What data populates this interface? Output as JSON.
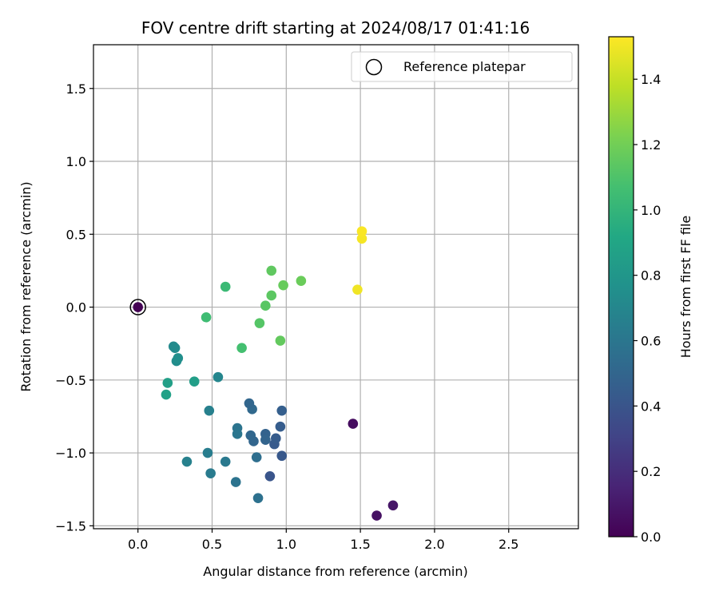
{
  "chart_data": {
    "type": "scatter",
    "title": "FOV centre drift starting at 2024/08/17 01:41:16",
    "xlabel": "Angular distance from reference (arcmin)",
    "ylabel": "Rotation from reference (arcmin)",
    "xlim": [
      -0.3,
      2.97
    ],
    "ylim": [
      -1.52,
      1.8
    ],
    "xticks": [
      0.0,
      0.5,
      1.0,
      1.5,
      2.0,
      2.5
    ],
    "xtick_labels": [
      "0.0",
      "0.5",
      "1.0",
      "1.5",
      "2.0",
      "2.5"
    ],
    "yticks": [
      -1.5,
      -1.0,
      -0.5,
      0.0,
      0.5,
      1.0,
      1.5
    ],
    "ytick_labels": [
      "−1.5",
      "−1.0",
      "−0.5",
      "0.0",
      "0.5",
      "1.0",
      "1.5"
    ],
    "grid": true,
    "legend": {
      "placement": "top-right",
      "entries": [
        {
          "label": "Reference platepar",
          "marker": "open-circle"
        }
      ]
    },
    "reference_point": {
      "x": 0.0,
      "y": 0.0
    },
    "colorbar": {
      "label": "Hours from first FF file",
      "colormap": "viridis",
      "range": [
        0.0,
        1.53
      ],
      "ticks": [
        0.0,
        0.2,
        0.4,
        0.6,
        0.8,
        1.0,
        1.2,
        1.4
      ],
      "tick_labels": [
        "0.0",
        "0.2",
        "0.4",
        "0.6",
        "0.8",
        "1.0",
        "1.2",
        "1.4"
      ]
    },
    "points": [
      {
        "x": 0.0,
        "y": 0.0,
        "c": 0.0
      },
      {
        "x": 1.45,
        "y": -0.8,
        "c": 0.05
      },
      {
        "x": 1.61,
        "y": -1.43,
        "c": 0.07
      },
      {
        "x": 1.72,
        "y": -1.36,
        "c": 0.09
      },
      {
        "x": 0.89,
        "y": -1.16,
        "c": 0.4
      },
      {
        "x": 0.97,
        "y": -1.02,
        "c": 0.42
      },
      {
        "x": 0.92,
        "y": -0.94,
        "c": 0.43
      },
      {
        "x": 0.93,
        "y": -0.9,
        "c": 0.44
      },
      {
        "x": 0.96,
        "y": -0.82,
        "c": 0.45
      },
      {
        "x": 0.97,
        "y": -0.71,
        "c": 0.46
      },
      {
        "x": 0.86,
        "y": -0.87,
        "c": 0.48
      },
      {
        "x": 0.86,
        "y": -0.91,
        "c": 0.49
      },
      {
        "x": 0.78,
        "y": -0.92,
        "c": 0.5
      },
      {
        "x": 0.76,
        "y": -0.88,
        "c": 0.51
      },
      {
        "x": 0.77,
        "y": -0.7,
        "c": 0.52
      },
      {
        "x": 0.75,
        "y": -0.66,
        "c": 0.5
      },
      {
        "x": 0.8,
        "y": -1.03,
        "c": 0.55
      },
      {
        "x": 0.81,
        "y": -1.31,
        "c": 0.57
      },
      {
        "x": 0.66,
        "y": -1.2,
        "c": 0.58
      },
      {
        "x": 0.67,
        "y": -0.83,
        "c": 0.59
      },
      {
        "x": 0.67,
        "y": -0.87,
        "c": 0.6
      },
      {
        "x": 0.59,
        "y": -1.06,
        "c": 0.62
      },
      {
        "x": 0.49,
        "y": -1.14,
        "c": 0.63
      },
      {
        "x": 0.47,
        "y": -1.0,
        "c": 0.64
      },
      {
        "x": 0.48,
        "y": -0.71,
        "c": 0.66
      },
      {
        "x": 0.33,
        "y": -1.06,
        "c": 0.67
      },
      {
        "x": 0.54,
        "y": -0.48,
        "c": 0.7
      },
      {
        "x": 0.24,
        "y": -0.27,
        "c": 0.72
      },
      {
        "x": 0.25,
        "y": -0.28,
        "c": 0.73
      },
      {
        "x": 0.26,
        "y": -0.37,
        "c": 0.74
      },
      {
        "x": 0.27,
        "y": -0.35,
        "c": 0.75
      },
      {
        "x": 0.38,
        "y": -0.51,
        "c": 0.85
      },
      {
        "x": 0.2,
        "y": -0.52,
        "c": 0.86
      },
      {
        "x": 0.19,
        "y": -0.6,
        "c": 0.87
      },
      {
        "x": 0.59,
        "y": 0.14,
        "c": 1.03
      },
      {
        "x": 0.46,
        "y": -0.07,
        "c": 1.05
      },
      {
        "x": 0.7,
        "y": -0.28,
        "c": 1.07
      },
      {
        "x": 0.82,
        "y": -0.11,
        "c": 1.12
      },
      {
        "x": 0.86,
        "y": 0.01,
        "c": 1.13
      },
      {
        "x": 0.9,
        "y": 0.08,
        "c": 1.14
      },
      {
        "x": 0.9,
        "y": 0.25,
        "c": 1.15
      },
      {
        "x": 0.96,
        "y": -0.23,
        "c": 1.16
      },
      {
        "x": 0.98,
        "y": 0.15,
        "c": 1.17
      },
      {
        "x": 1.1,
        "y": 0.18,
        "c": 1.18
      },
      {
        "x": 1.48,
        "y": 0.12,
        "c": 1.5
      },
      {
        "x": 1.51,
        "y": 0.47,
        "c": 1.51
      },
      {
        "x": 1.51,
        "y": 0.52,
        "c": 1.52
      }
    ]
  }
}
